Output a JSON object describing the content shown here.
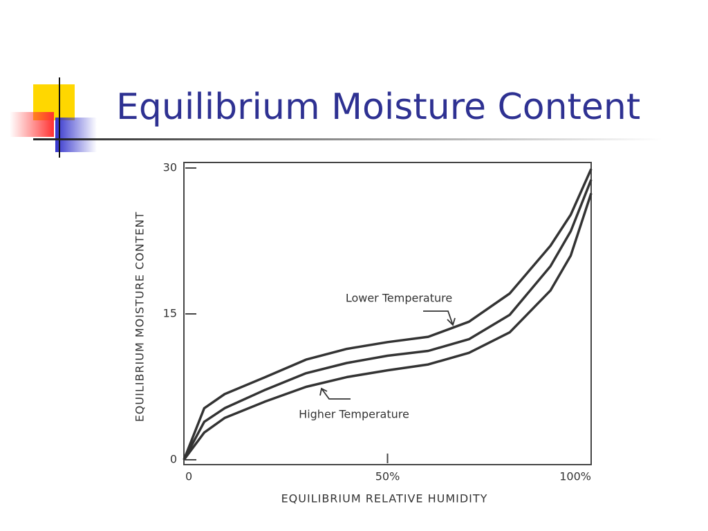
{
  "chart_data": {
    "type": "line",
    "title": "Equilibrium Moisture Content",
    "x_label": "EQUILIBRIUM RELATIVE HUMIDITY",
    "y_label": "EQUILIBRIUM MOISTURE CONTENT",
    "x": [
      0,
      5,
      10,
      20,
      30,
      40,
      50,
      60,
      70,
      80,
      90,
      95,
      100
    ],
    "series": [
      {
        "name": "Lower Temperature",
        "color": "#333333",
        "values": [
          0,
          5.3,
          6.75,
          8.5,
          10.3,
          11.4,
          12.1,
          12.65,
          14.2,
          17.1,
          22,
          25.2,
          29.9
        ]
      },
      {
        "color": "#333333",
        "values": [
          0,
          3.9,
          5.3,
          7.2,
          8.9,
          9.95,
          10.7,
          11.2,
          12.4,
          14.9,
          19.9,
          23.5,
          28.8
        ]
      },
      {
        "name": "Higher Temperature",
        "color": "#333333",
        "values": [
          0,
          2.8,
          4.3,
          6,
          7.5,
          8.5,
          9.2,
          9.8,
          11,
          13.1,
          17.4,
          21,
          27.4
        ]
      }
    ],
    "xlim": [
      0,
      100
    ],
    "xticks": [
      0,
      {
        "value": 50,
        "label": "50%"
      },
      {
        "value": 100,
        "label": "100%"
      }
    ],
    "ylim": [
      0,
      30
    ],
    "yticks": [
      0,
      15,
      30
    ]
  }
}
